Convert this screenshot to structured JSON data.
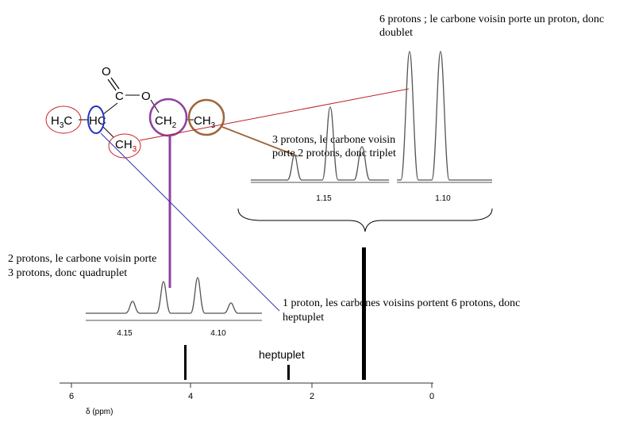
{
  "molecule": {
    "carbonyl_o": "O",
    "carbonyl_c": "C",
    "ester_o": "O",
    "h3c": {
      "h": "H",
      "sub": "3",
      "c": "C"
    },
    "hc": "HC",
    "ch2": {
      "ch": "CH",
      "sub": "2"
    },
    "ch3_right": {
      "ch": "CH",
      "sub": "3"
    },
    "ch3_bottom": {
      "ch": "CH",
      "sub": "3"
    }
  },
  "annotations": {
    "doublet": [
      "6 protons ; le carbone voisin porte un proton, donc",
      "doublet"
    ],
    "triplet": [
      "3 protons, le carbone voisin",
      "porte 2 protons, donc triplet"
    ],
    "quadruplet": [
      "2 protons, le carbone voisin porte",
      "3 protons, donc quadruplet"
    ],
    "heptuplet": [
      "1 proton, les carbones voisins portent 6 protons, donc",
      "heptuplet"
    ]
  },
  "spectrum": {
    "peak_label": "heptuplet",
    "axis_label": "δ (ppm)",
    "ticks": [
      "6",
      "4",
      "2",
      "0"
    ]
  },
  "insets": {
    "triplet_tick": "1.15",
    "doublet_tick": "1.10",
    "quad_ticks": [
      "4.15",
      "4.10"
    ]
  }
}
